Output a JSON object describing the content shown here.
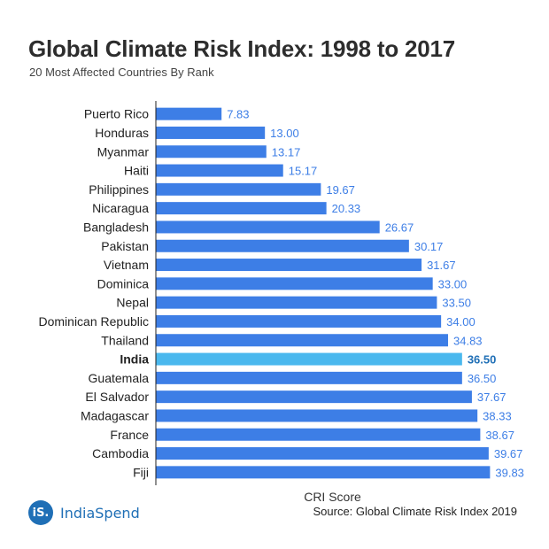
{
  "header": {
    "title": "Global Climate Risk Index: 1998 to 2017",
    "subtitle": "20 Most Affected Countries By Rank"
  },
  "footer": {
    "logo_badge": "iS.",
    "brand": "IndiaSpend",
    "source": "Source: Global Climate Risk Index 2019"
  },
  "colors": {
    "bar": "#3d7ee6",
    "highlight_bar": "#4ab8ee",
    "value_label": "#3d7ee6",
    "highlight_label": "#1f6fb6"
  },
  "chart_data": {
    "type": "bar",
    "orientation": "horizontal",
    "title": "Global Climate Risk Index: 1998 to 2017",
    "subtitle": "20 Most Affected Countries By Rank",
    "xlabel": "CRI Score",
    "ylabel": "",
    "xlim": [
      0,
      40
    ],
    "grid": false,
    "highlight": "India",
    "categories": [
      "Puerto Rico",
      "Honduras",
      "Myanmar",
      "Haiti",
      "Philippines",
      "Nicaragua",
      "Bangladesh",
      "Pakistan",
      "Vietnam",
      "Dominica",
      "Nepal",
      "Dominican Republic",
      "Thailand",
      "India",
      "Guatemala",
      "El Salvador",
      "Madagascar",
      "France",
      "Cambodia",
      "Fiji"
    ],
    "values": [
      7.83,
      13.0,
      13.17,
      15.17,
      19.67,
      20.33,
      26.67,
      30.17,
      31.67,
      33.0,
      33.5,
      34.0,
      34.83,
      36.5,
      36.5,
      37.67,
      38.33,
      38.67,
      39.67,
      39.83
    ],
    "value_labels": [
      "7.83",
      "13.00",
      "13.17",
      "15.17",
      "19.67",
      "20.33",
      "26.67",
      "30.17",
      "31.67",
      "33.00",
      "33.50",
      "34.00",
      "34.83",
      "36.50",
      "36.50",
      "37.67",
      "38.33",
      "38.67",
      "39.67",
      "39.83"
    ]
  }
}
